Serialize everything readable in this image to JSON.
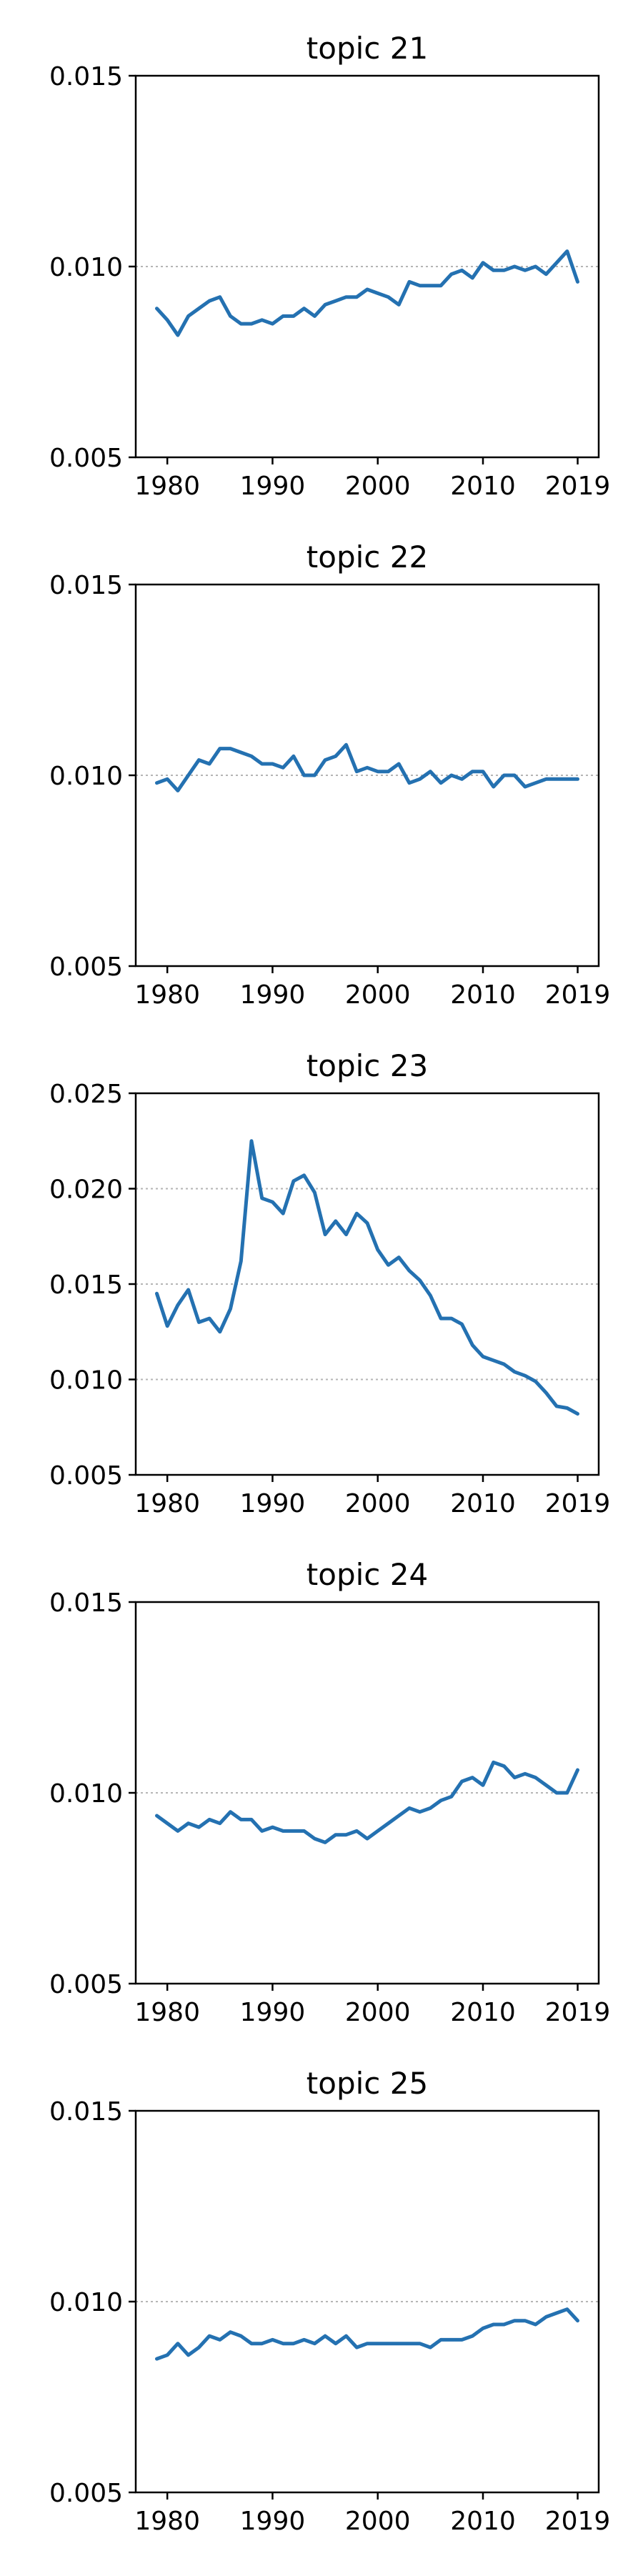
{
  "chart_data": [
    {
      "type": "line",
      "title": "topic 21",
      "xlabel": "",
      "ylabel": "",
      "xlim": [
        1977,
        2021
      ],
      "ylim": [
        0.005,
        0.015
      ],
      "xticks": [
        1980,
        1990,
        2000,
        2010,
        2019
      ],
      "xtick_labels": [
        "1980",
        "1990",
        "2000",
        "2010",
        "2019"
      ],
      "yticks": [
        0.005,
        0.01,
        0.015
      ],
      "ytick_labels": [
        "0.005",
        "0.010",
        "0.015"
      ],
      "gridlines_y": [
        0.01
      ],
      "series": [
        {
          "x": [
            1979,
            1980,
            1981,
            1982,
            1983,
            1984,
            1985,
            1986,
            1987,
            1988,
            1989,
            1990,
            1991,
            1992,
            1993,
            1994,
            1995,
            1996,
            1997,
            1998,
            1999,
            2000,
            2001,
            2002,
            2003,
            2004,
            2005,
            2006,
            2007,
            2008,
            2009,
            2010,
            2011,
            2012,
            2013,
            2014,
            2015,
            2016,
            2017,
            2018,
            2019
          ],
          "values": [
            0.0089,
            0.0086,
            0.0082,
            0.0087,
            0.0089,
            0.0091,
            0.0092,
            0.0087,
            0.0085,
            0.0085,
            0.0086,
            0.0085,
            0.0087,
            0.0087,
            0.0089,
            0.0087,
            0.009,
            0.0091,
            0.0092,
            0.0092,
            0.0094,
            0.0093,
            0.0092,
            0.009,
            0.0096,
            0.0095,
            0.0095,
            0.0095,
            0.0098,
            0.0099,
            0.0097,
            0.0101,
            0.0099,
            0.0099,
            0.01,
            0.0099,
            0.01,
            0.0098,
            0.0101,
            0.0104,
            0.0096
          ]
        }
      ]
    },
    {
      "type": "line",
      "title": "topic 22",
      "xlabel": "",
      "ylabel": "",
      "xlim": [
        1977,
        2021
      ],
      "ylim": [
        0.005,
        0.015
      ],
      "xticks": [
        1980,
        1990,
        2000,
        2010,
        2019
      ],
      "xtick_labels": [
        "1980",
        "1990",
        "2000",
        "2010",
        "2019"
      ],
      "yticks": [
        0.005,
        0.01,
        0.015
      ],
      "ytick_labels": [
        "0.005",
        "0.010",
        "0.015"
      ],
      "gridlines_y": [
        0.01
      ],
      "series": [
        {
          "x": [
            1979,
            1980,
            1981,
            1982,
            1983,
            1984,
            1985,
            1986,
            1987,
            1988,
            1989,
            1990,
            1991,
            1992,
            1993,
            1994,
            1995,
            1996,
            1997,
            1998,
            1999,
            2000,
            2001,
            2002,
            2003,
            2004,
            2005,
            2006,
            2007,
            2008,
            2009,
            2010,
            2011,
            2012,
            2013,
            2014,
            2015,
            2016,
            2017,
            2018,
            2019
          ],
          "values": [
            0.0098,
            0.0099,
            0.0096,
            0.01,
            0.0104,
            0.0103,
            0.0107,
            0.0107,
            0.0106,
            0.0105,
            0.0103,
            0.0103,
            0.0102,
            0.0105,
            0.01,
            0.01,
            0.0104,
            0.0105,
            0.0108,
            0.0101,
            0.0102,
            0.0101,
            0.0101,
            0.0103,
            0.0098,
            0.0099,
            0.0101,
            0.0098,
            0.01,
            0.0099,
            0.0101,
            0.0101,
            0.0097,
            0.01,
            0.01,
            0.0097,
            0.0098,
            0.0099,
            0.0099,
            0.0099,
            0.0099
          ]
        }
      ]
    },
    {
      "type": "line",
      "title": "topic 23",
      "xlabel": "",
      "ylabel": "",
      "xlim": [
        1977,
        2021
      ],
      "ylim": [
        0.005,
        0.025
      ],
      "xticks": [
        1980,
        1990,
        2000,
        2010,
        2019
      ],
      "xtick_labels": [
        "1980",
        "1990",
        "2000",
        "2010",
        "2019"
      ],
      "yticks": [
        0.005,
        0.01,
        0.015,
        0.02,
        0.025
      ],
      "ytick_labels": [
        "0.005",
        "0.010",
        "0.015",
        "0.020",
        "0.025"
      ],
      "gridlines_y": [
        0.01,
        0.015,
        0.02
      ],
      "series": [
        {
          "x": [
            1979,
            1980,
            1981,
            1982,
            1983,
            1984,
            1985,
            1986,
            1987,
            1988,
            1989,
            1990,
            1991,
            1992,
            1993,
            1994,
            1995,
            1996,
            1997,
            1998,
            1999,
            2000,
            2001,
            2002,
            2003,
            2004,
            2005,
            2006,
            2007,
            2008,
            2009,
            2010,
            2011,
            2012,
            2013,
            2014,
            2015,
            2016,
            2017,
            2018,
            2019
          ],
          "values": [
            0.0145,
            0.0128,
            0.0139,
            0.0147,
            0.013,
            0.0132,
            0.0125,
            0.0137,
            0.0162,
            0.0225,
            0.0195,
            0.0193,
            0.0187,
            0.0204,
            0.0207,
            0.0198,
            0.0176,
            0.0183,
            0.0176,
            0.0187,
            0.0182,
            0.0168,
            0.016,
            0.0164,
            0.0157,
            0.0152,
            0.0144,
            0.0132,
            0.0132,
            0.0129,
            0.0118,
            0.0112,
            0.011,
            0.0108,
            0.0104,
            0.0102,
            0.0099,
            0.0093,
            0.0086,
            0.0085,
            0.0082
          ]
        }
      ]
    },
    {
      "type": "line",
      "title": "topic 24",
      "xlabel": "",
      "ylabel": "",
      "xlim": [
        1977,
        2021
      ],
      "ylim": [
        0.005,
        0.015
      ],
      "xticks": [
        1980,
        1990,
        2000,
        2010,
        2019
      ],
      "xtick_labels": [
        "1980",
        "1990",
        "2000",
        "2010",
        "2019"
      ],
      "yticks": [
        0.005,
        0.01,
        0.015
      ],
      "ytick_labels": [
        "0.005",
        "0.010",
        "0.015"
      ],
      "gridlines_y": [
        0.01
      ],
      "series": [
        {
          "x": [
            1979,
            1980,
            1981,
            1982,
            1983,
            1984,
            1985,
            1986,
            1987,
            1988,
            1989,
            1990,
            1991,
            1992,
            1993,
            1994,
            1995,
            1996,
            1997,
            1998,
            1999,
            2000,
            2001,
            2002,
            2003,
            2004,
            2005,
            2006,
            2007,
            2008,
            2009,
            2010,
            2011,
            2012,
            2013,
            2014,
            2015,
            2016,
            2017,
            2018,
            2019
          ],
          "values": [
            0.0094,
            0.0092,
            0.009,
            0.0092,
            0.0091,
            0.0093,
            0.0092,
            0.0095,
            0.0093,
            0.0093,
            0.009,
            0.0091,
            0.009,
            0.009,
            0.009,
            0.0088,
            0.0087,
            0.0089,
            0.0089,
            0.009,
            0.0088,
            0.009,
            0.0092,
            0.0094,
            0.0096,
            0.0095,
            0.0096,
            0.0098,
            0.0099,
            0.0103,
            0.0104,
            0.0102,
            0.0108,
            0.0107,
            0.0104,
            0.0105,
            0.0104,
            0.0102,
            0.01,
            0.01,
            0.0106
          ]
        }
      ]
    },
    {
      "type": "line",
      "title": "topic 25",
      "xlabel": "",
      "ylabel": "",
      "xlim": [
        1977,
        2021
      ],
      "ylim": [
        0.005,
        0.015
      ],
      "xticks": [
        1980,
        1990,
        2000,
        2010,
        2019
      ],
      "xtick_labels": [
        "1980",
        "1990",
        "2000",
        "2010",
        "2019"
      ],
      "yticks": [
        0.005,
        0.01,
        0.015
      ],
      "ytick_labels": [
        "0.005",
        "0.010",
        "0.015"
      ],
      "gridlines_y": [
        0.01
      ],
      "series": [
        {
          "x": [
            1979,
            1980,
            1981,
            1982,
            1983,
            1984,
            1985,
            1986,
            1987,
            1988,
            1989,
            1990,
            1991,
            1992,
            1993,
            1994,
            1995,
            1996,
            1997,
            1998,
            1999,
            2000,
            2001,
            2002,
            2003,
            2004,
            2005,
            2006,
            2007,
            2008,
            2009,
            2010,
            2011,
            2012,
            2013,
            2014,
            2015,
            2016,
            2017,
            2018,
            2019
          ],
          "values": [
            0.0085,
            0.0086,
            0.0089,
            0.0086,
            0.0088,
            0.0091,
            0.009,
            0.0092,
            0.0091,
            0.0089,
            0.0089,
            0.009,
            0.0089,
            0.0089,
            0.009,
            0.0089,
            0.0091,
            0.0089,
            0.0091,
            0.0088,
            0.0089,
            0.0089,
            0.0089,
            0.0089,
            0.0089,
            0.0089,
            0.0088,
            0.009,
            0.009,
            0.009,
            0.0091,
            0.0093,
            0.0094,
            0.0094,
            0.0095,
            0.0095,
            0.0094,
            0.0096,
            0.0097,
            0.0098,
            0.0095
          ]
        }
      ]
    }
  ],
  "colors": {
    "series_line": "#2471b1",
    "axes": "#000000",
    "grid": "#b5b5b5"
  }
}
